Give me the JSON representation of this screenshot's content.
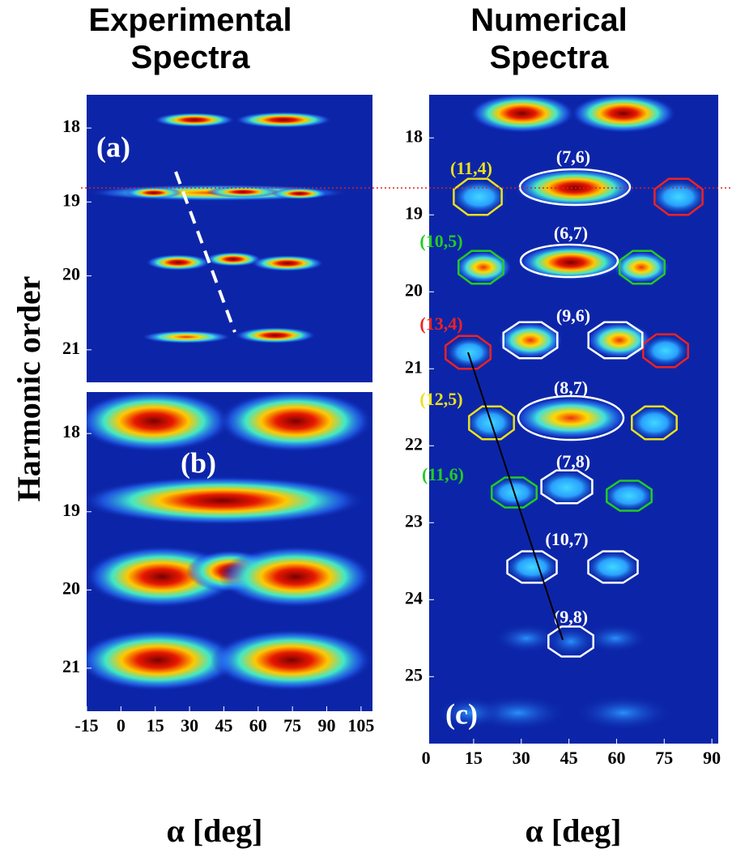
{
  "titles": [
    "Experimental Spectra",
    "Numerical Spectra"
  ],
  "y_label": "Harmonic order",
  "x_labels": [
    "α [deg]",
    "α [deg]"
  ],
  "chart_data": [
    {
      "type": "heatmap",
      "panel": "(a)",
      "ylim": [
        17.55,
        21.44
      ],
      "yticks": [
        18,
        19,
        20,
        21
      ]
    },
    {
      "type": "heatmap",
      "panel": "(b)",
      "xlim": [
        -15,
        110
      ],
      "ylim": [
        17.47,
        21.55
      ],
      "yticks": [
        18,
        19,
        20,
        21
      ],
      "xticks": [
        -15,
        0,
        15,
        30,
        45,
        60,
        75,
        90,
        105
      ]
    },
    {
      "type": "heatmap",
      "panel": "(c)",
      "xlim": [
        1,
        92
      ],
      "ylim": [
        17.44,
        25.87
      ],
      "yticks": [
        18,
        19,
        20,
        21,
        22,
        23,
        24,
        25
      ],
      "xticks": [
        0,
        15,
        30,
        45,
        60,
        75,
        90
      ],
      "annotations": [
        {
          "label": "(11,4)",
          "color": "#ece01c"
        },
        {
          "label": "(7,6)",
          "color": "#ffffff"
        },
        {
          "label": "(10,5)",
          "color": "#22cc22"
        },
        {
          "label": "(6,7)",
          "color": "#ffffff"
        },
        {
          "label": "(13,4)",
          "color": "#ee2222"
        },
        {
          "label": "(9,6)",
          "color": "#ffffff"
        },
        {
          "label": "(12,5)",
          "color": "#ece01c"
        },
        {
          "label": "(8,7)",
          "color": "#ffffff"
        },
        {
          "label": "(11,6)",
          "color": "#22cc22"
        },
        {
          "label": "(7,8)",
          "color": "#ffffff"
        },
        {
          "label": "(10,7)",
          "color": "#ffffff"
        },
        {
          "label": "(9,8)",
          "color": "#ffffff"
        }
      ]
    }
  ]
}
